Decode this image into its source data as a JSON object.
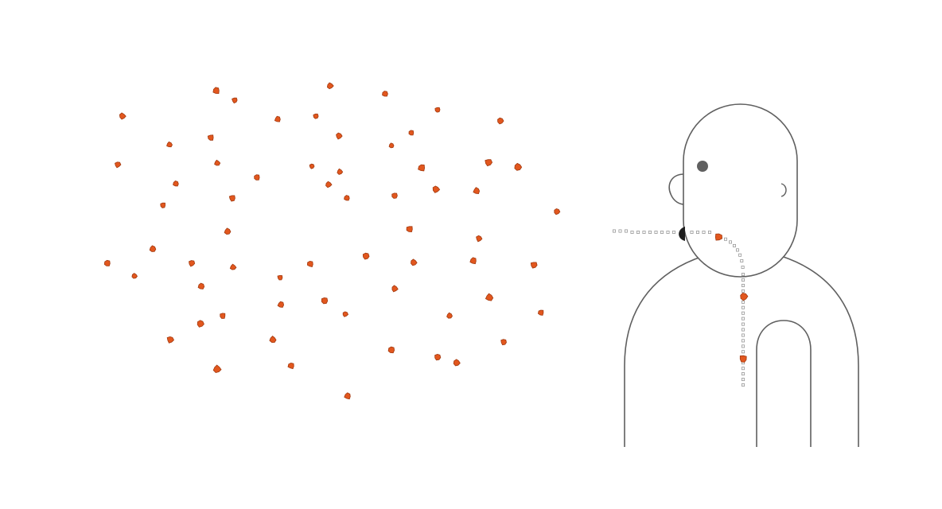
{
  "colors": {
    "background": "#ffffff",
    "outline": "#5f5f5f",
    "particle_fill": "#e2571e",
    "particle_stroke": "#a23a10",
    "eye": "#606060",
    "mouth": "#1e1e1e",
    "trail": "#8a8a8a"
  },
  "scene": {
    "subject": "person-exhaling-particles-icon",
    "particle_cloud": "particle-cloud",
    "airway_particles": "inhaled-particles"
  }
}
